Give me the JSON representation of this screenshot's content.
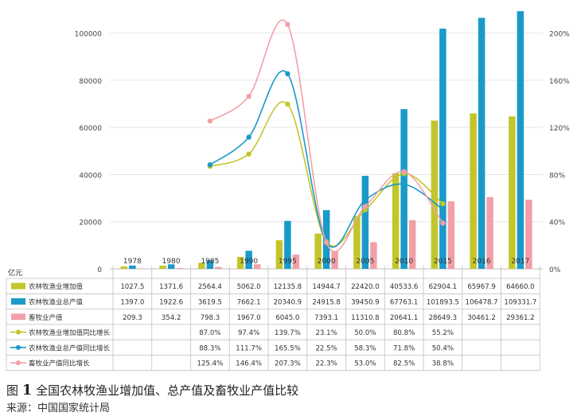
{
  "chart_data": {
    "type": "bar",
    "title": "",
    "categories": [
      "1978",
      "1980",
      "1985",
      "1990",
      "1995",
      "2000",
      "2005",
      "2010",
      "2015",
      "2016",
      "2017"
    ],
    "left_axis": {
      "unit": "亿元",
      "ticks": [
        "0",
        "20000",
        "40000",
        "60000",
        "80000",
        "100000"
      ],
      "ylim": [
        0,
        110000
      ]
    },
    "right_axis": {
      "ticks": [
        "0%",
        "40%",
        "80%",
        "120%",
        "160%",
        "200%"
      ],
      "ylim": [
        0,
        2.2
      ]
    },
    "series": [
      {
        "name": "农林牧渔业增加值",
        "kind": "bar",
        "axis": "left",
        "color": "#c3c62a",
        "values": [
          1027.5,
          1371.6,
          2564.4,
          5062.0,
          12135.8,
          14944.7,
          22420.0,
          40533.6,
          62904.1,
          65967.9,
          64660.0
        ],
        "labels": [
          "1027.5",
          "1371.6",
          "2564.4",
          "5062.0",
          "12135.8",
          "14944.7",
          "22420.0",
          "40533.6",
          "62904.1",
          "65967.9",
          "64660.0"
        ]
      },
      {
        "name": "农林牧渔业总产值",
        "kind": "bar",
        "axis": "left",
        "color": "#1a9ac9",
        "values": [
          1397.0,
          1922.6,
          3619.5,
          7662.1,
          20340.9,
          24915.8,
          39450.9,
          67763.1,
          101893.5,
          106478.7,
          109331.7
        ],
        "labels": [
          "1397.0",
          "1922.6",
          "3619.5",
          "7662.1",
          "20340.9",
          "24915.8",
          "39450.9",
          "67763.1",
          "101893.5",
          "106478.7",
          "109331.7"
        ]
      },
      {
        "name": "畜牧业产值",
        "kind": "bar",
        "axis": "left",
        "color": "#f2a0a8",
        "values": [
          209.3,
          354.2,
          798.3,
          1967.0,
          6045.0,
          7393.1,
          11310.8,
          20641.1,
          28649.3,
          30461.2,
          29361.2
        ],
        "labels": [
          "209.3",
          "354.2",
          "798.3",
          "1967.0",
          "6045.0",
          "7393.1",
          "11310.8",
          "20641.1",
          "28649.3",
          "30461.2",
          "29361.2"
        ]
      },
      {
        "name": "农林牧渔业增加值同比增长",
        "kind": "line",
        "axis": "right",
        "color": "#c3c62a",
        "values": [
          null,
          null,
          0.87,
          0.974,
          1.397,
          0.231,
          0.5,
          0.808,
          0.552,
          null,
          null
        ],
        "labels": [
          "",
          "",
          "87.0%",
          "97.4%",
          "139.7%",
          "23.1%",
          "50.0%",
          "80.8%",
          "55.2%",
          "",
          ""
        ]
      },
      {
        "name": "农林牧渔业总产值同比增长",
        "kind": "line",
        "axis": "right",
        "color": "#1a9ac9",
        "values": [
          null,
          null,
          0.883,
          1.117,
          1.655,
          0.225,
          0.583,
          0.718,
          0.504,
          null,
          null
        ],
        "labels": [
          "",
          "",
          "88.3%",
          "111.7%",
          "165.5%",
          "22.5%",
          "58.3%",
          "71.8%",
          "50.4%",
          "",
          ""
        ]
      },
      {
        "name": "畜牧业产值同比增长",
        "kind": "line",
        "axis": "right",
        "color": "#f2a0a8",
        "values": [
          null,
          null,
          1.254,
          1.464,
          2.073,
          0.223,
          0.53,
          0.825,
          0.388,
          null,
          null
        ],
        "labels": [
          "",
          "",
          "125.4%",
          "146.4%",
          "207.3%",
          "22.3%",
          "53.0%",
          "82.5%",
          "38.8%",
          "",
          ""
        ]
      }
    ],
    "caption_prefix": "图",
    "caption_number": "1",
    "caption_text": "全国农林牧渔业增加值、总产值及畜牧业产值比较",
    "source": "来源：中国国家统计局",
    "grid": true,
    "legend": "table-below"
  }
}
